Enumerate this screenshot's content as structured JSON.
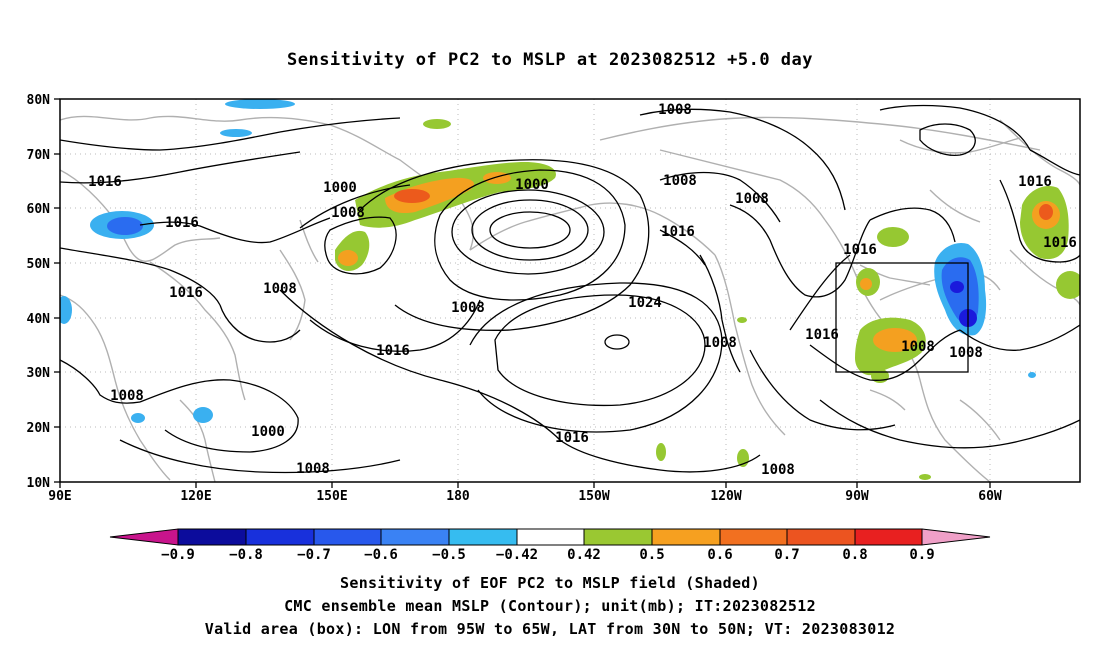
{
  "title": "Sensitivity of PC2 to MSLP at 2023082512 +5.0 day",
  "map": {
    "lat_labels": [
      "80N",
      "70N",
      "60N",
      "50N",
      "40N",
      "30N",
      "20N",
      "10N"
    ],
    "lon_labels": [
      "90E",
      "120E",
      "150E",
      "180",
      "150W",
      "120W",
      "90W",
      "60W"
    ],
    "contour_labels": [
      {
        "text": "1008"
      },
      {
        "text": "1016"
      },
      {
        "text": "1000"
      },
      {
        "text": "1000"
      },
      {
        "text": "1008"
      },
      {
        "text": "1016"
      },
      {
        "text": "1008"
      },
      {
        "text": "1008"
      },
      {
        "text": "1016"
      },
      {
        "text": "1016"
      },
      {
        "text": "1016"
      },
      {
        "text": "1016"
      },
      {
        "text": "1008"
      },
      {
        "text": "1024"
      },
      {
        "text": "1008"
      },
      {
        "text": "1016"
      },
      {
        "text": "1016"
      },
      {
        "text": "1008"
      },
      {
        "text": "1008"
      },
      {
        "text": "1008"
      },
      {
        "text": "1016"
      },
      {
        "text": "1008"
      },
      {
        "text": "1000"
      },
      {
        "text": "1016"
      },
      {
        "text": "1008"
      },
      {
        "text": "1008"
      }
    ],
    "valid_box": {
      "lon_min": "95W",
      "lon_max": "65W",
      "lat_min": "30N",
      "lat_max": "50N"
    },
    "shading_colors": {
      "neg_strong": "#1a1adc",
      "neg_mid": "#2a6cf0",
      "neg_weak": "#3ab0f0",
      "pos_weak": "#96c832",
      "pos_mid": "#f4a020",
      "pos_strong": "#ec5a1c"
    },
    "land_outline_color": "#b0b0b0"
  },
  "colorbar": {
    "labels": [
      "−0.9",
      "−0.8",
      "−0.7",
      "−0.6",
      "−0.5",
      "−0.42",
      "0.42",
      "0.5",
      "0.6",
      "0.7",
      "0.8",
      "0.9"
    ],
    "colors": [
      "#0c0c9c",
      "#1830dc",
      "#2858ec",
      "#3a82f4",
      "#36bcf0",
      "#ffffff",
      "#9ac832",
      "#f6a020",
      "#f27020",
      "#ec5420",
      "#e82020"
    ],
    "min_arrow_color": "#c8148c",
    "max_arrow_color": "#f0a0c8"
  },
  "footer": {
    "line1": "Sensitivity of EOF PC2 to MSLP field (Shaded)",
    "line2": "CMC ensemble mean MSLP (Contour); unit(mb); IT:2023082512",
    "line3": "Valid area (box): LON from 95W to 65W, LAT from 30N to 50N; VT: 2023083012"
  }
}
